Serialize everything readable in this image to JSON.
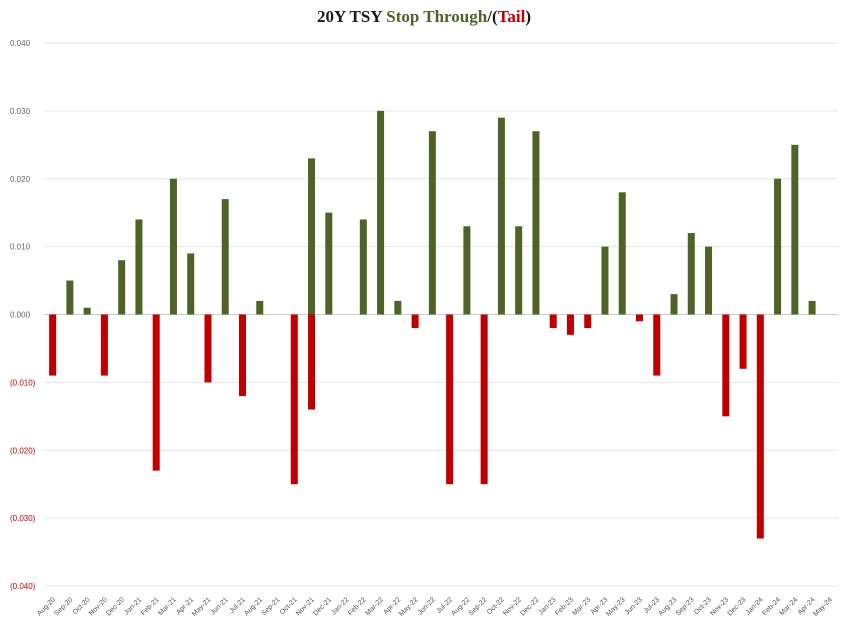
{
  "title": {
    "base": "20Y TSY",
    "positive": "Stop Through",
    "separator": "/(",
    "negative": "Tail",
    "close": ")"
  },
  "colors": {
    "positive": "#4f6228",
    "negative": "#c00000",
    "grid": "#e6e6e6",
    "positive_label": "#666666",
    "negative_label": "#c00000"
  },
  "chart_data": {
    "type": "bar",
    "title": "20Y TSY Stop Through/(Tail)",
    "xlabel": "",
    "ylabel": "",
    "ylim": [
      -0.04,
      0.04
    ],
    "grid": true,
    "legend": "none",
    "yticks": [
      0.04,
      0.03,
      0.02,
      0.01,
      0.0,
      -0.01,
      -0.02,
      -0.03,
      -0.04
    ],
    "ytick_labels": [
      "0.040",
      "0.030",
      "0.020",
      "0.010",
      "0.000",
      "(0.010)",
      "(0.020)",
      "(0.030)",
      "(0.040)"
    ],
    "categories": [
      "Aug-20",
      "Sep-20",
      "Oct-20",
      "Nov-20",
      "Dec-20",
      "Jan-21",
      "Feb-21",
      "Mar-21",
      "Apr-21",
      "May-21",
      "Jun-21",
      "Jul-21",
      "Aug-21",
      "Sep-21",
      "Oct-21",
      "Nov-21",
      "Dec-21",
      "Jan-22",
      "Feb-22",
      "Mar-22",
      "Apr-22",
      "May-22",
      "Jun-22",
      "Jul-22",
      "Aug-22",
      "Sep-22",
      "Oct-22",
      "Nov-22",
      "Dec-22",
      "Jan-23",
      "Feb-23",
      "Mar-23",
      "Apr-23",
      "May-23",
      "Jun-23",
      "Jul-23",
      "Aug-23",
      "Sep-23",
      "Oct-23",
      "Nov-23",
      "Dec-23",
      "Jan-24",
      "Feb-24",
      "Mar-24",
      "Apr-24",
      "May-24"
    ],
    "series": [
      {
        "pos_values": [
          0,
          0.005,
          0.001,
          0,
          0.008,
          0.014,
          0,
          0.02,
          0.009,
          0,
          0.017,
          0,
          0.002,
          0,
          0,
          0.023,
          0.015,
          0,
          0.014,
          0.03,
          0.002,
          0,
          0.027,
          0,
          0.013,
          0,
          0.029,
          0.013,
          0.027,
          0,
          0,
          0,
          0.01,
          0.018,
          0,
          0,
          0.003,
          0.012,
          0.01,
          0,
          0,
          0,
          0.02,
          0.025,
          0.002,
          0
        ],
        "neg_values": [
          -0.009,
          0,
          0,
          -0.009,
          0,
          0,
          -0.023,
          0,
          0,
          -0.01,
          0,
          -0.012,
          0,
          0,
          -0.025,
          -0.014,
          0,
          0,
          0,
          0,
          0,
          -0.002,
          0,
          -0.025,
          0,
          -0.025,
          0,
          0,
          0,
          -0.002,
          -0.003,
          -0.002,
          0,
          0,
          -0.001,
          -0.009,
          0,
          0,
          0,
          -0.015,
          -0.008,
          -0.033,
          0,
          0,
          0,
          0
        ]
      }
    ]
  }
}
